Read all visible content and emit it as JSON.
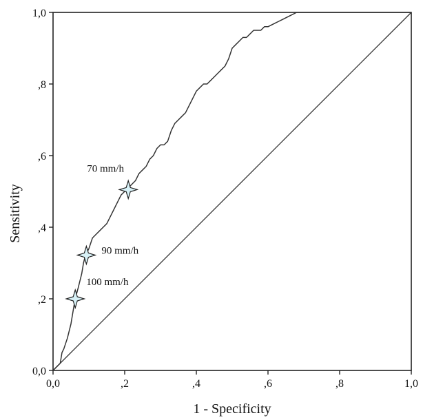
{
  "chart_data": {
    "type": "line",
    "xlabel": "1 - Specificity",
    "ylabel": "Sensitivity",
    "xlim": [
      0,
      1
    ],
    "ylim": [
      0,
      1
    ],
    "x_ticks": [
      {
        "value": 0.0,
        "label": "0,0"
      },
      {
        "value": 0.2,
        "label": ",2"
      },
      {
        "value": 0.4,
        "label": ",4"
      },
      {
        "value": 0.6,
        "label": ",6"
      },
      {
        "value": 0.8,
        "label": ",8"
      },
      {
        "value": 1.0,
        "label": "1,0"
      }
    ],
    "y_ticks": [
      {
        "value": 0.0,
        "label": "0,0"
      },
      {
        "value": 0.2,
        "label": ",2"
      },
      {
        "value": 0.4,
        "label": ",4"
      },
      {
        "value": 0.6,
        "label": ",6"
      },
      {
        "value": 0.8,
        "label": ",8"
      },
      {
        "value": 1.0,
        "label": "1,0"
      }
    ],
    "grid": false,
    "series": [
      {
        "style": "roc-curve",
        "x": [
          0,
          0.01,
          0.02,
          0.025,
          0.03,
          0.04,
          0.05,
          0.055,
          0.06,
          0.062,
          0.07,
          0.075,
          0.08,
          0.085,
          0.09,
          0.095,
          0.1,
          0.11,
          0.12,
          0.13,
          0.14,
          0.15,
          0.16,
          0.17,
          0.18,
          0.19,
          0.2,
          0.21,
          0.22,
          0.23,
          0.24,
          0.25,
          0.26,
          0.27,
          0.28,
          0.29,
          0.3,
          0.31,
          0.32,
          0.33,
          0.34,
          0.35,
          0.36,
          0.37,
          0.38,
          0.39,
          0.4,
          0.41,
          0.42,
          0.43,
          0.44,
          0.45,
          0.46,
          0.47,
          0.48,
          0.49,
          0.5,
          0.51,
          0.52,
          0.53,
          0.54,
          0.55,
          0.56,
          0.57,
          0.58,
          0.59,
          0.6,
          0.61,
          0.62,
          0.63,
          0.64,
          0.66,
          0.68,
          0.7,
          0.72,
          0.74,
          0.76,
          0.78,
          0.8,
          0.82,
          0.84,
          0.86,
          0.88,
          0.9,
          0.92,
          0.94,
          0.96,
          0.98,
          1.0
        ],
        "y": [
          0,
          0.01,
          0.02,
          0.05,
          0.06,
          0.09,
          0.13,
          0.16,
          0.19,
          0.2,
          0.23,
          0.25,
          0.27,
          0.3,
          0.32,
          0.33,
          0.34,
          0.37,
          0.38,
          0.39,
          0.4,
          0.41,
          0.43,
          0.45,
          0.47,
          0.49,
          0.5,
          0.51,
          0.52,
          0.53,
          0.55,
          0.56,
          0.57,
          0.59,
          0.6,
          0.62,
          0.63,
          0.63,
          0.64,
          0.67,
          0.69,
          0.7,
          0.71,
          0.72,
          0.74,
          0.76,
          0.78,
          0.79,
          0.8,
          0.8,
          0.81,
          0.82,
          0.83,
          0.84,
          0.85,
          0.87,
          0.9,
          0.91,
          0.92,
          0.93,
          0.93,
          0.94,
          0.95,
          0.95,
          0.95,
          0.96,
          0.96,
          0.965,
          0.97,
          0.975,
          0.98,
          0.99,
          1.0,
          1.0,
          1.0,
          1.0,
          1.0,
          1.0,
          1.0,
          1.0,
          1.0,
          1.0,
          1.0,
          1.0,
          1.0,
          1.0,
          1.0,
          1.0,
          1.0
        ]
      },
      {
        "style": "reference-diagonal",
        "x": [
          0,
          1
        ],
        "y": [
          0,
          1
        ]
      }
    ],
    "annotations": [
      {
        "label": "70 mm/h",
        "x": 0.21,
        "y": 0.505
      },
      {
        "label": "90 mm/h",
        "x": 0.093,
        "y": 0.322
      },
      {
        "label": "100 mm/h",
        "x": 0.062,
        "y": 0.2
      }
    ],
    "colors": {
      "line": "#333333",
      "frame": "#222222",
      "marker_fill": "#d7f1f7",
      "marker_stroke": "#222222"
    }
  }
}
